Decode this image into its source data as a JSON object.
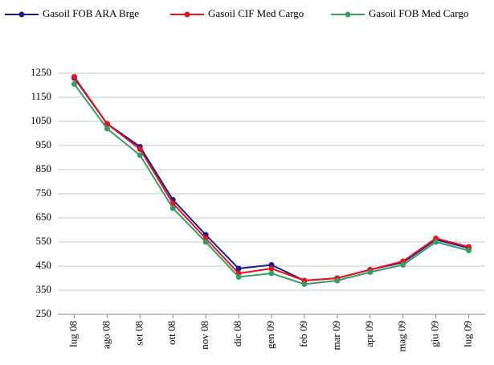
{
  "chart_data": {
    "type": "line",
    "categories": [
      "lug 08",
      "ago 08",
      "set 08",
      "ott 08",
      "nov 08",
      "dic 08",
      "gen 09",
      "feb 09",
      "mar 09",
      "apr 09",
      "mag 09",
      "giu 09",
      "lug 09"
    ],
    "series": [
      {
        "name": "Gasoil FOB ARA Brge",
        "color": "#1a1a8c",
        "values": [
          1230,
          1040,
          945,
          725,
          580,
          440,
          455,
          390,
          400,
          435,
          465,
          560,
          525
        ]
      },
      {
        "name": "Gasoil CIF Med Cargo",
        "color": "#e8131b",
        "values": [
          1235,
          1040,
          935,
          710,
          565,
          420,
          440,
          390,
          400,
          435,
          470,
          565,
          530
        ]
      },
      {
        "name": "Gasoil FOB Med Cargo",
        "color": "#3a9a6a",
        "values": [
          1205,
          1020,
          910,
          690,
          550,
          405,
          420,
          375,
          390,
          425,
          455,
          550,
          515
        ]
      }
    ],
    "ylim": [
      250,
      1250
    ],
    "yticks": [
      250,
      350,
      450,
      550,
      650,
      750,
      850,
      950,
      1050,
      1150,
      1250
    ],
    "grid": true,
    "legend": "top"
  }
}
